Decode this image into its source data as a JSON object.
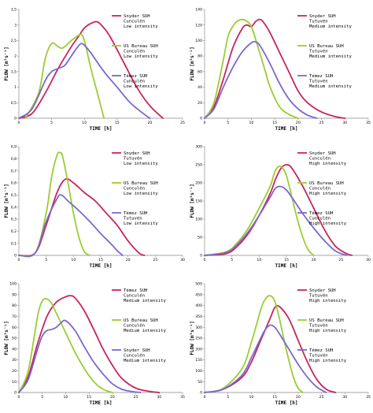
{
  "figure": {
    "colors": {
      "snyder": "#c8245c",
      "usbureau": "#9acd32",
      "temez": "#7b68cc"
    },
    "y_axis_title": "FLOW [m³s⁻¹]",
    "x_axis_title": "TIME [h]"
  },
  "chart_data": [
    {
      "type": "line",
      "xlim": [
        0,
        25
      ],
      "ylim": [
        0,
        3.5
      ],
      "xticks": [
        0,
        5,
        10,
        15,
        20,
        25
      ],
      "xtick_labels": [
        "0",
        "5",
        "10",
        "15",
        "20",
        "25"
      ],
      "yticks": [
        0,
        0.5,
        1,
        1.5,
        2,
        2.5,
        3,
        3.5
      ],
      "ytick_labels": [
        "0",
        "0,5",
        "1",
        "1,5",
        "2",
        "2,5",
        "3",
        "3,5"
      ],
      "xlabel": "TIME [h]",
      "ylabel": "FLOW [m³s⁻¹]",
      "legend_position": "right",
      "series": [
        {
          "name": "Snyder SUH\nCunculén\nLow intensity",
          "color_key": "snyder",
          "x": [
            0,
            2,
            4,
            6,
            8,
            9,
            10,
            11,
            12,
            13,
            14,
            16,
            18,
            20,
            22
          ],
          "y": [
            0,
            0.15,
            0.8,
            1.6,
            2.3,
            2.6,
            2.9,
            3.05,
            3.1,
            2.9,
            2.6,
            1.8,
            1.0,
            0.4,
            0
          ]
        },
        {
          "name": "US Bureau SUH\nCunculén\nLow intensity",
          "color_key": "usbureau",
          "x": [
            1,
            3,
            4,
            5,
            6,
            6.5,
            7,
            8,
            9,
            9.5,
            10,
            11,
            12,
            13
          ],
          "y": [
            0,
            0.8,
            1.9,
            2.4,
            2.3,
            2.25,
            2.3,
            2.5,
            2.65,
            2.7,
            2.5,
            1.6,
            0.8,
            0
          ]
        },
        {
          "name": "Témez SUH\nCunculén\nLow intensity",
          "color_key": "temez",
          "x": [
            0,
            2,
            4,
            5,
            6,
            7,
            8,
            9,
            9.5,
            10,
            11,
            13,
            15,
            17,
            19,
            20
          ],
          "y": [
            0,
            0.3,
            1.2,
            1.5,
            1.6,
            1.7,
            2.0,
            2.3,
            2.4,
            2.35,
            2.1,
            1.5,
            1.0,
            0.5,
            0.15,
            0
          ]
        }
      ]
    },
    {
      "type": "line",
      "xlim": [
        0,
        35
      ],
      "ylim": [
        0,
        140
      ],
      "xticks": [
        0,
        5,
        10,
        15,
        20,
        25,
        30,
        35
      ],
      "xtick_labels": [
        "0",
        "5",
        "10",
        "15",
        "20",
        "25",
        "30",
        "35"
      ],
      "yticks": [
        0,
        20,
        40,
        60,
        80,
        100,
        120,
        140
      ],
      "ytick_labels": [
        "0",
        "20",
        "40",
        "60",
        "80",
        "100",
        "120",
        "140"
      ],
      "xlabel": "TIME [h]",
      "ylabel": "FLOW [m³s⁻¹]",
      "legend_position": "right",
      "series": [
        {
          "name": "Snyder SUH\nTutuvén\nMedium intensity",
          "color_key": "snyder",
          "x": [
            0,
            2,
            4,
            6,
            8,
            9,
            10,
            11,
            12,
            13,
            14,
            16,
            18,
            20,
            22,
            25,
            28,
            30
          ],
          "y": [
            0,
            15,
            50,
            90,
            115,
            120,
            118,
            125,
            127,
            120,
            110,
            85,
            60,
            35,
            20,
            8,
            2,
            0
          ]
        },
        {
          "name": "US Bureau SUH\nTutuvén\nMedium intensity",
          "color_key": "usbureau",
          "x": [
            0,
            2,
            4,
            5,
            6,
            7,
            8,
            9,
            10,
            11,
            12,
            13,
            14,
            16,
            18,
            20
          ],
          "y": [
            0,
            20,
            75,
            105,
            118,
            125,
            127,
            125,
            118,
            100,
            80,
            60,
            40,
            15,
            5,
            0
          ]
        },
        {
          "name": "Témez SUH\nTutuvén\nMedium intensity",
          "color_key": "temez",
          "x": [
            0,
            2,
            4,
            6,
            8,
            10,
            11,
            12,
            14,
            16,
            18,
            20,
            22,
            24
          ],
          "y": [
            0,
            12,
            40,
            65,
            85,
            97,
            98,
            92,
            70,
            45,
            25,
            12,
            4,
            0
          ]
        }
      ]
    },
    {
      "type": "line",
      "xlim": [
        0,
        30
      ],
      "ylim": [
        0,
        0.9
      ],
      "xticks": [
        0,
        5,
        10,
        15,
        20,
        25,
        30
      ],
      "xtick_labels": [
        "0",
        "5",
        "10",
        "15",
        "20",
        "25",
        "30"
      ],
      "yticks": [
        0,
        0.1,
        0.2,
        0.3,
        0.4,
        0.5,
        0.6,
        0.7,
        0.8,
        0.9
      ],
      "ytick_labels": [
        "0",
        "0,1",
        "0,2",
        "0,3",
        "0,4",
        "0,5",
        "0,6",
        "0,7",
        "0,8",
        "0,9"
      ],
      "xlabel": "TIME [h]",
      "ylabel": "FLOW [m³s⁻¹]",
      "legend_position": "right",
      "series": [
        {
          "name": "Snyder SUH\nTutuvén\nLow intensity",
          "color_key": "snyder",
          "x": [
            0,
            3,
            5,
            7,
            8.5,
            10,
            12,
            14,
            16,
            18,
            20,
            22,
            23
          ],
          "y": [
            0,
            0.02,
            0.25,
            0.52,
            0.63,
            0.6,
            0.52,
            0.45,
            0.35,
            0.25,
            0.12,
            0.02,
            0
          ]
        },
        {
          "name": "US Bureau SUH\nCunculén\nLow intensity",
          "color_key": "usbureau",
          "x": [
            0,
            3,
            5,
            6,
            7,
            7.5,
            8,
            9,
            10,
            11,
            12,
            13
          ],
          "y": [
            0,
            0.02,
            0.35,
            0.65,
            0.83,
            0.85,
            0.82,
            0.6,
            0.35,
            0.15,
            0.03,
            0
          ]
        },
        {
          "name": "Témez SUH\nTutuvén\nLow intensity",
          "color_key": "temez",
          "x": [
            0,
            3,
            5,
            7,
            7.8,
            9,
            11,
            13,
            15,
            17,
            18,
            19
          ],
          "y": [
            0,
            0.02,
            0.28,
            0.47,
            0.5,
            0.45,
            0.37,
            0.28,
            0.18,
            0.09,
            0.04,
            0
          ]
        }
      ]
    },
    {
      "type": "line",
      "xlim": [
        0,
        30
      ],
      "ylim": [
        0,
        300
      ],
      "xticks": [
        0,
        5,
        10,
        15,
        20,
        25,
        30
      ],
      "xtick_labels": [
        "0",
        "5",
        "10",
        "15",
        "20",
        "25",
        "30"
      ],
      "yticks": [
        0,
        50,
        100,
        150,
        200,
        250,
        300
      ],
      "ytick_labels": [
        "0",
        "50",
        "100",
        "150",
        "200",
        "250",
        "300"
      ],
      "xlabel": "TIME [h]",
      "ylabel": "FLOW [m³s⁻¹]",
      "legend_position": "right",
      "series": [
        {
          "name": "Snyder SUH\nCunculén\nHigh intensity",
          "color_key": "snyder",
          "x": [
            0,
            4,
            6,
            8,
            10,
            12,
            13,
            14,
            15,
            16,
            18,
            20,
            22,
            24,
            26,
            27
          ],
          "y": [
            0,
            5,
            25,
            60,
            110,
            170,
            210,
            240,
            250,
            240,
            190,
            130,
            70,
            25,
            5,
            0
          ]
        },
        {
          "name": "US Bureau SUH\nCunculén\nHigh intensity",
          "color_key": "usbureau",
          "x": [
            0,
            4,
            6,
            8,
            10,
            12,
            13,
            14,
            15,
            16,
            17,
            18,
            19,
            20
          ],
          "y": [
            0,
            10,
            35,
            75,
            130,
            190,
            235,
            245,
            220,
            160,
            100,
            50,
            15,
            0
          ]
        },
        {
          "name": "Témez SUH\nCunculén\nHigh intensity",
          "color_key": "temez",
          "x": [
            0,
            4,
            6,
            8,
            10,
            12,
            13,
            14,
            15,
            16,
            18,
            20,
            22,
            24,
            26
          ],
          "y": [
            0,
            8,
            30,
            65,
            110,
            160,
            185,
            190,
            180,
            160,
            115,
            75,
            40,
            12,
            0
          ]
        }
      ]
    },
    {
      "type": "line",
      "xlim": [
        0,
        35
      ],
      "ylim": [
        0,
        100
      ],
      "xticks": [
        0,
        5,
        10,
        15,
        20,
        25,
        30,
        35
      ],
      "xtick_labels": [
        "0",
        "5",
        "10",
        "15",
        "20",
        "25",
        "30",
        "35"
      ],
      "yticks": [
        0,
        10,
        20,
        30,
        40,
        50,
        60,
        70,
        80,
        90,
        100
      ],
      "ytick_labels": [
        "0",
        "10",
        "20",
        "30",
        "40",
        "50",
        "60",
        "70",
        "80",
        "90",
        "100"
      ],
      "xlabel": "TIME [h]",
      "ylabel": "FLOW [m³s⁻¹]",
      "legend_position": "right",
      "series": [
        {
          "name": "Témez SUH\nCunculén\nMedium intensity",
          "color_key": "snyder",
          "x": [
            0,
            2,
            4,
            6,
            8,
            10,
            11,
            12,
            14,
            16,
            18,
            20,
            22,
            25,
            28,
            30
          ],
          "y": [
            0,
            15,
            45,
            70,
            83,
            88,
            89,
            87,
            75,
            58,
            40,
            25,
            13,
            4,
            1,
            0
          ]
        },
        {
          "name": "US Bureau SUH\nCunculén\nMedium intensity",
          "color_key": "usbureau",
          "x": [
            0,
            2,
            4,
            5,
            6,
            7,
            8,
            10,
            12,
            14,
            16,
            18,
            20
          ],
          "y": [
            0,
            20,
            70,
            84,
            86,
            82,
            73,
            55,
            37,
            22,
            10,
            3,
            0
          ]
        },
        {
          "name": "Snyder SUH\nCunculén\nMedium intensity",
          "color_key": "temez",
          "x": [
            0,
            2,
            4,
            5,
            6,
            7,
            8,
            9,
            10,
            12,
            14,
            16,
            18,
            20,
            22,
            24,
            26
          ],
          "y": [
            0,
            12,
            40,
            52,
            57,
            58,
            60,
            64,
            66,
            57,
            42,
            28,
            17,
            8,
            3,
            1,
            0
          ]
        }
      ]
    },
    {
      "type": "line",
      "xlim": [
        0,
        35
      ],
      "ylim": [
        0,
        500
      ],
      "xticks": [
        0,
        5,
        10,
        15,
        20,
        25,
        30,
        35
      ],
      "xtick_labels": [
        "0",
        "5",
        "10",
        "15",
        "20",
        "25",
        "30",
        "35"
      ],
      "yticks": [
        0,
        50,
        100,
        150,
        200,
        250,
        300,
        350,
        400,
        450,
        500
      ],
      "ytick_labels": [
        "0",
        "50",
        "100",
        "150",
        "200",
        "250",
        "300",
        "350",
        "400",
        "450",
        "500"
      ],
      "xlabel": "TIME [h]",
      "ylabel": "FLOW [m³s⁻¹]",
      "legend_position": "right",
      "series": [
        {
          "name": "Snyder SUH\nTutuvén\nHigh intensity",
          "color_key": "snyder",
          "x": [
            0,
            4,
            8,
            10,
            12,
            14,
            15,
            16,
            18,
            20,
            22,
            24,
            26,
            28
          ],
          "y": [
            0,
            15,
            70,
            140,
            240,
            340,
            390,
            395,
            340,
            240,
            140,
            60,
            15,
            0
          ]
        },
        {
          "name": "US Bureau SUH\nTutuvén\nHigh intensity",
          "color_key": "usbureau",
          "x": [
            0,
            4,
            8,
            10,
            12,
            13,
            14,
            15,
            16,
            17,
            18,
            19,
            20,
            21
          ],
          "y": [
            0,
            20,
            110,
            230,
            380,
            430,
            445,
            420,
            340,
            240,
            150,
            70,
            20,
            0
          ]
        },
        {
          "name": "Témez SUH\nTutuvén\nHigh intensity",
          "color_key": "temez",
          "x": [
            0,
            4,
            8,
            10,
            12,
            13,
            14,
            15,
            16,
            18,
            20,
            22,
            24,
            26
          ],
          "y": [
            0,
            15,
            80,
            160,
            250,
            290,
            310,
            300,
            270,
            200,
            130,
            70,
            25,
            0
          ]
        }
      ]
    }
  ]
}
